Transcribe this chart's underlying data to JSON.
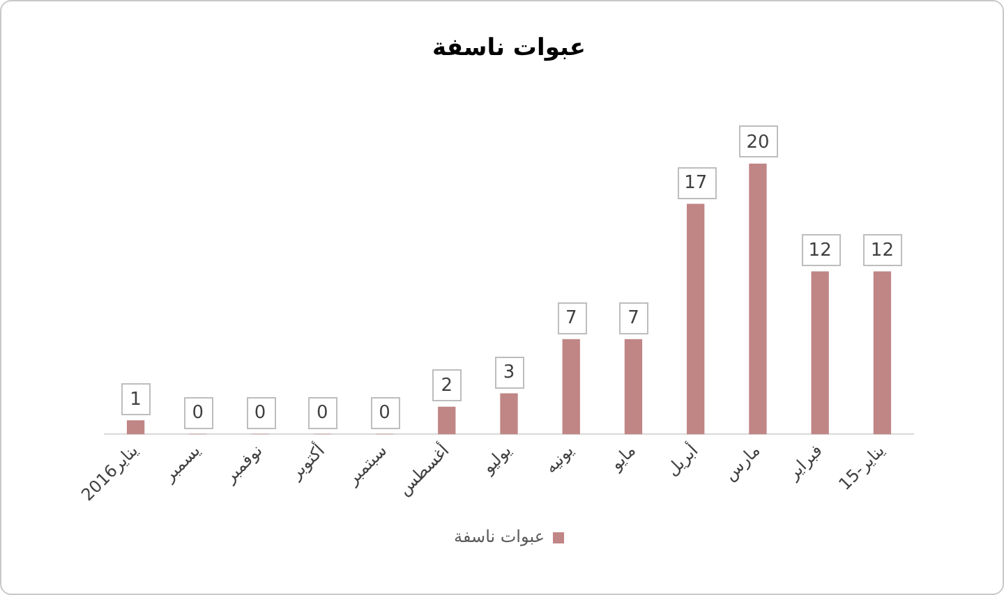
{
  "chart_data": {
    "type": "bar",
    "title": "عبوات ناسفة",
    "categories": [
      "يناير2016",
      "يسمبر",
      "نوفمبر",
      "أكتوبر",
      "سبتمبر",
      "أغسطس",
      "يوليو",
      "يونيه",
      "مايو",
      "أبريل",
      "مارس",
      "فبراير",
      "يناير-15"
    ],
    "series": [
      {
        "name": "عبوات ناسفة",
        "color": "#c08585",
        "values": [
          1,
          0,
          0,
          0,
          0,
          2,
          3,
          7,
          7,
          17,
          20,
          12,
          12
        ]
      }
    ],
    "data_labels": true,
    "legend": "bottom",
    "grid": false,
    "tick_labels": "x"
  }
}
